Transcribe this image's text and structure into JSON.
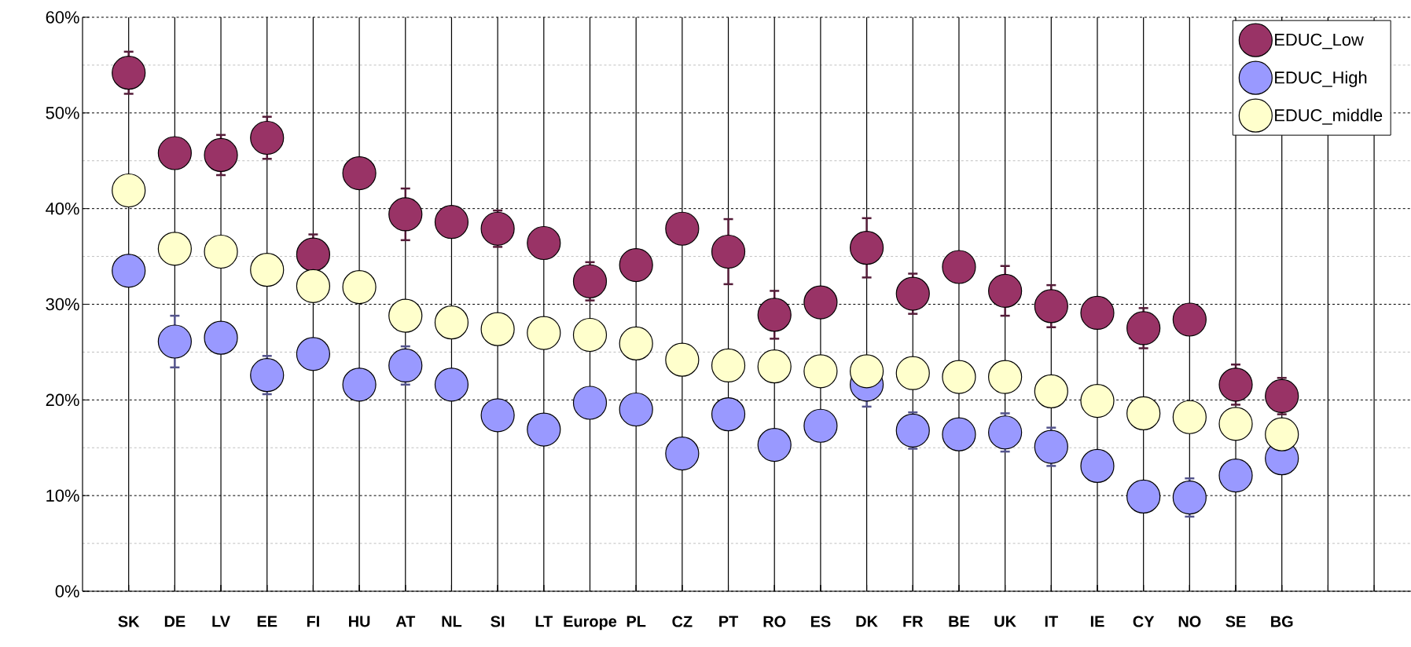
{
  "chart_data": {
    "type": "scatter",
    "categories": [
      "SK",
      "DE",
      "LV",
      "EE",
      "FI",
      "HU",
      "AT",
      "NL",
      "SI",
      "LT",
      "Europe",
      "PL",
      "CZ",
      "PT",
      "RO",
      "ES",
      "DK",
      "FR",
      "BE",
      "UK",
      "IT",
      "IE",
      "CY",
      "NO",
      "SE",
      "BG",
      null,
      null
    ],
    "series": [
      {
        "name": "EDUC_Low",
        "color": "#993366",
        "values": [
          54.2,
          45.8,
          45.6,
          47.4,
          35.2,
          43.7,
          39.4,
          38.6,
          37.9,
          36.4,
          32.4,
          34.1,
          37.9,
          35.5,
          28.9,
          30.2,
          35.9,
          31.1,
          33.9,
          31.4,
          29.8,
          29.1,
          27.5,
          28.4,
          21.6,
          20.4,
          null,
          null
        ],
        "errors": [
          2.2,
          null,
          2.1,
          2.2,
          2.1,
          null,
          2.7,
          null,
          1.9,
          null,
          2.0,
          null,
          null,
          3.4,
          2.5,
          null,
          3.1,
          2.1,
          null,
          2.6,
          2.2,
          null,
          2.1,
          null,
          2.1,
          1.9,
          null,
          null
        ]
      },
      {
        "name": "EDUC_High",
        "color": "#9999ff",
        "values": [
          33.5,
          26.1,
          26.5,
          22.6,
          24.8,
          21.6,
          23.6,
          21.6,
          18.4,
          16.9,
          19.7,
          19.0,
          14.4,
          18.5,
          15.3,
          17.3,
          21.6,
          16.8,
          16.4,
          16.6,
          15.1,
          13.1,
          9.9,
          9.8,
          12.1,
          13.9,
          null,
          null
        ],
        "errors": [
          null,
          2.7,
          null,
          2.0,
          null,
          null,
          2.0,
          null,
          null,
          null,
          null,
          null,
          null,
          null,
          null,
          null,
          2.3,
          1.9,
          null,
          2.0,
          2.0,
          null,
          null,
          2.0,
          null,
          null,
          null,
          null
        ]
      },
      {
        "name": "EDUC_middle",
        "color": "#ffffcc",
        "values": [
          41.9,
          35.8,
          35.5,
          33.6,
          31.9,
          31.8,
          28.8,
          28.1,
          27.4,
          27.0,
          26.8,
          25.9,
          24.2,
          23.6,
          23.5,
          23.0,
          23.0,
          22.8,
          22.4,
          22.4,
          20.9,
          19.9,
          18.6,
          18.2,
          17.5,
          16.4,
          null,
          null
        ]
      }
    ],
    "ylim": [
      0,
      60
    ],
    "yticks": [
      {
        "value": 0,
        "label": "0%"
      },
      {
        "value": 10,
        "label": "10%"
      },
      {
        "value": 20,
        "label": "20%"
      },
      {
        "value": 30,
        "label": "30%"
      },
      {
        "value": 40,
        "label": "40%"
      },
      {
        "value": 50,
        "label": "50%"
      },
      {
        "value": 60,
        "label": "60%"
      }
    ],
    "grid": true,
    "legend": "top right",
    "marker": "circle"
  }
}
